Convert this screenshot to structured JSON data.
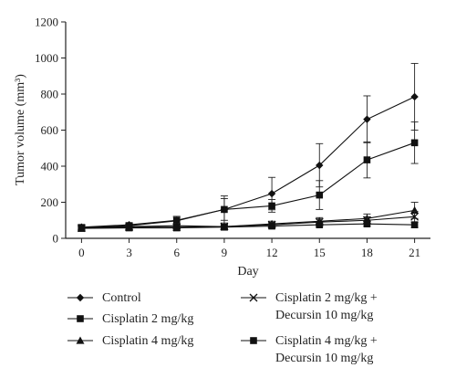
{
  "chart_data": {
    "type": "line",
    "xlabel": "Day",
    "ylabel": "Tumor volume (mm³)",
    "ylim": [
      0,
      1200
    ],
    "xlim": [
      -1,
      22
    ],
    "x": [
      0,
      3,
      6,
      9,
      12,
      15,
      18,
      21
    ],
    "x_ticks": [
      0,
      3,
      6,
      9,
      12,
      15,
      18,
      21
    ],
    "y_ticks": [
      0,
      200,
      400,
      600,
      800,
      1000,
      1200
    ],
    "grid": false,
    "legend_position": "bottom",
    "series": [
      {
        "name": "Control",
        "marker": "diamond",
        "values": [
          62,
          75,
          100,
          160,
          248,
          405,
          660,
          785
        ],
        "errors": [
          10,
          12,
          22,
          75,
          90,
          120,
          130,
          185
        ]
      },
      {
        "name": "Cisplatin 2 mg/kg",
        "marker": "square",
        "values": [
          60,
          70,
          97,
          160,
          180,
          240,
          435,
          530
        ],
        "errors": [
          10,
          12,
          20,
          60,
          35,
          80,
          100,
          115
        ]
      },
      {
        "name": "Cisplatin 4 mg/kg",
        "marker": "triangle",
        "values": [
          58,
          65,
          70,
          65,
          80,
          95,
          110,
          155
        ],
        "errors": [
          8,
          10,
          12,
          12,
          15,
          20,
          25,
          45
        ]
      },
      {
        "name": "Cisplatin 2 mg/kg + Decursin 10 mg/kg",
        "marker": "x",
        "values": [
          57,
          62,
          62,
          65,
          75,
          90,
          100,
          120
        ],
        "errors": [
          8,
          8,
          10,
          10,
          14,
          18,
          20,
          30
        ]
      },
      {
        "name": "Cisplatin 4 mg/kg + Decursin 10 mg/kg",
        "marker": "square",
        "values": [
          55,
          58,
          58,
          62,
          68,
          75,
          80,
          75
        ],
        "errors": [
          6,
          8,
          8,
          8,
          10,
          10,
          12,
          15
        ]
      }
    ],
    "legend": [
      {
        "lines": [
          "Control"
        ]
      },
      {
        "lines": [
          "Cisplatin 2 mg/kg"
        ]
      },
      {
        "lines": [
          "Cisplatin 4 mg/kg"
        ]
      },
      {
        "lines": [
          "Cisplatin 2 mg/kg +",
          "Decursin 10 mg/kg"
        ]
      },
      {
        "lines": [
          "Cisplatin 4 mg/kg +",
          "Decursin 10 mg/kg"
        ]
      }
    ]
  }
}
